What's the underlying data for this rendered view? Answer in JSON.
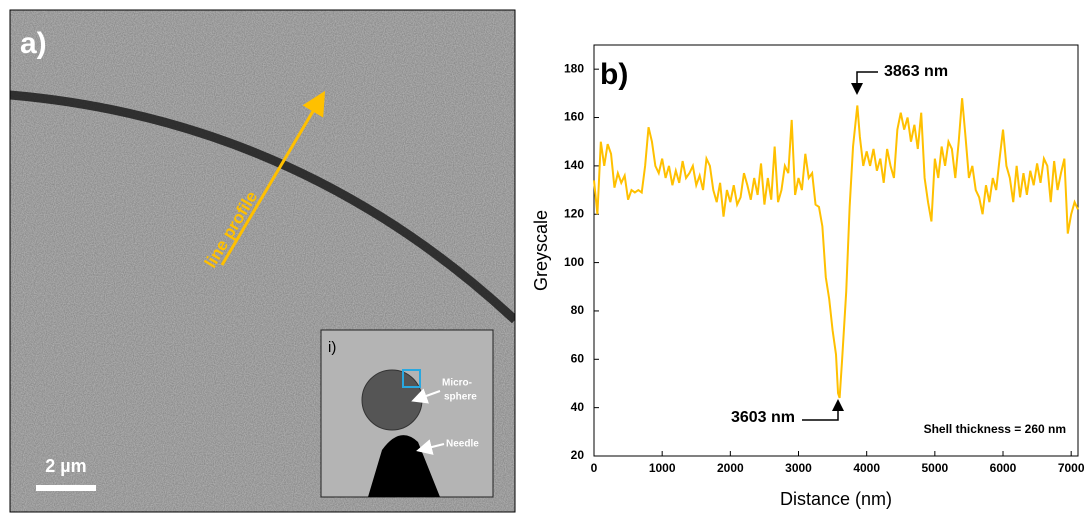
{
  "image_panel": {
    "label": "a)",
    "annotation": "line profile",
    "scale_bar": "2 µm",
    "inset": {
      "label": "i)",
      "microsphere_label": [
        "Micro-",
        "sphere"
      ],
      "needle_label": "Needle"
    }
  },
  "chart_data": {
    "type": "line",
    "label": "b)",
    "x_label": "Distance (nm)",
    "y_label": "Greyscale",
    "xlim": [
      0,
      7100
    ],
    "ylim": [
      20,
      190
    ],
    "xticks": [
      0,
      1000,
      2000,
      3000,
      4000,
      5000,
      6000,
      7000
    ],
    "yticks": [
      20,
      40,
      60,
      80,
      100,
      120,
      140,
      160,
      180
    ],
    "grid": false,
    "series": [
      {
        "name": "Greyscale",
        "color": "#ffc000",
        "x": [
          0,
          50,
          100,
          150,
          200,
          250,
          300,
          350,
          400,
          450,
          500,
          550,
          600,
          650,
          700,
          750,
          800,
          850,
          900,
          950,
          1000,
          1050,
          1100,
          1150,
          1200,
          1250,
          1300,
          1350,
          1400,
          1450,
          1500,
          1550,
          1600,
          1650,
          1700,
          1750,
          1800,
          1850,
          1900,
          1950,
          2000,
          2050,
          2100,
          2150,
          2200,
          2250,
          2300,
          2350,
          2400,
          2450,
          2500,
          2550,
          2600,
          2650,
          2700,
          2750,
          2800,
          2850,
          2900,
          2950,
          3000,
          3050,
          3100,
          3150,
          3200,
          3250,
          3300,
          3350,
          3400,
          3450,
          3500,
          3550,
          3580,
          3603,
          3640,
          3700,
          3750,
          3800,
          3863,
          3900,
          3950,
          4000,
          4050,
          4100,
          4150,
          4200,
          4250,
          4300,
          4350,
          4400,
          4450,
          4500,
          4550,
          4600,
          4650,
          4700,
          4750,
          4800,
          4850,
          4900,
          4950,
          5000,
          5050,
          5100,
          5150,
          5200,
          5250,
          5300,
          5350,
          5400,
          5450,
          5500,
          5550,
          5600,
          5650,
          5700,
          5750,
          5800,
          5850,
          5900,
          5950,
          6000,
          6050,
          6100,
          6150,
          6200,
          6250,
          6300,
          6350,
          6400,
          6450,
          6500,
          6550,
          6600,
          6650,
          6700,
          6750,
          6800,
          6850,
          6900,
          6950,
          7000,
          7050,
          7100
        ],
        "values": [
          134,
          120,
          150,
          140,
          149,
          145,
          131,
          137,
          133,
          136,
          126,
          130,
          129,
          130,
          129,
          140,
          156,
          150,
          140,
          137,
          143,
          135,
          140,
          132,
          138,
          133,
          142,
          135,
          137,
          140,
          132,
          136,
          130,
          143,
          140,
          130,
          125,
          133,
          119,
          130,
          125,
          132,
          124,
          127,
          137,
          132,
          126,
          135,
          128,
          141,
          124,
          135,
          126,
          148,
          125,
          130,
          140,
          137,
          159,
          128,
          135,
          130,
          145,
          135,
          137,
          124,
          123,
          115,
          94,
          85,
          72,
          62,
          46,
          44,
          60,
          88,
          123,
          148,
          165,
          152,
          140,
          146,
          140,
          147,
          138,
          143,
          133,
          147,
          140,
          135,
          155,
          162,
          155,
          160,
          150,
          157,
          147,
          162,
          135,
          125,
          117,
          143,
          135,
          148,
          140,
          150,
          147,
          135,
          150,
          168,
          152,
          135,
          140,
          130,
          127,
          120,
          132,
          125,
          135,
          130,
          143,
          155,
          140,
          135,
          125,
          140,
          127,
          137,
          128,
          138,
          132,
          141,
          133,
          143,
          140,
          125,
          142,
          130,
          137,
          143,
          112,
          120,
          125,
          122
        ]
      }
    ],
    "annotations": [
      "3863 nm",
      "3603 nm",
      "Shell thickness = 260 nm"
    ]
  }
}
